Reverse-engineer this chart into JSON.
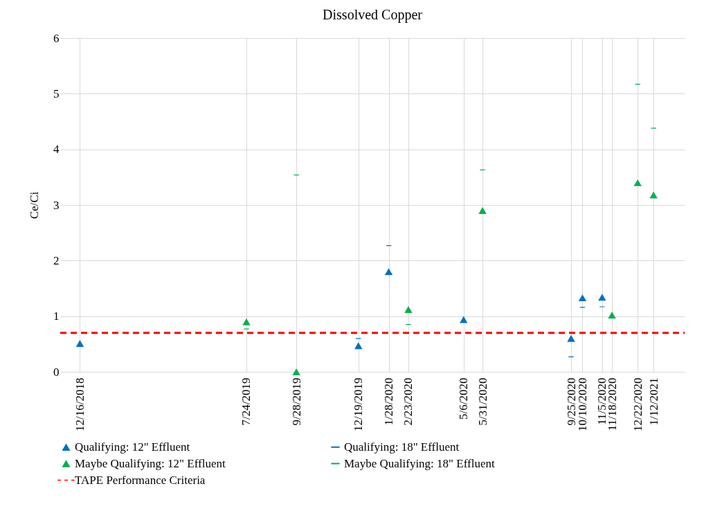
{
  "chart_data": {
    "type": "scatter",
    "title": "Dissolved Copper",
    "ylabel": "Ce/Ci",
    "xlim": [
      "2018-11-20",
      "2021-02-22"
    ],
    "ylim": [
      0,
      6
    ],
    "yticks": [
      0,
      1,
      2,
      3,
      4,
      5,
      6
    ],
    "xticks": [
      {
        "value": "2018-12-16",
        "label": "12/16/2018"
      },
      {
        "value": "2019-07-24",
        "label": "7/24/2019"
      },
      {
        "value": "2019-09-28",
        "label": "9/28/2019"
      },
      {
        "value": "2019-12-19",
        "label": "12/19/2019"
      },
      {
        "value": "2020-01-28",
        "label": "1/28/2020"
      },
      {
        "value": "2020-02-23",
        "label": "2/23/2020"
      },
      {
        "value": "2020-05-06",
        "label": "5/6/2020"
      },
      {
        "value": "2020-05-31",
        "label": "5/31/2020"
      },
      {
        "value": "2020-09-25",
        "label": "9/25/2020"
      },
      {
        "value": "2020-10-10",
        "label": "10/10/2020"
      },
      {
        "value": "2020-11-05",
        "label": "11/5/2020"
      },
      {
        "value": "2020-11-18",
        "label": "11/18/2020"
      },
      {
        "value": "2020-12-22",
        "label": "12/22/2020"
      },
      {
        "value": "2021-01-12",
        "label": "1/12/2021"
      }
    ],
    "grid": true,
    "legend": "bottom",
    "series": [
      {
        "name": "Qualifying: 12\" Effluent",
        "color": "#0070c0",
        "marker": "triangle",
        "x": [
          "2018-12-16",
          "2019-12-19",
          "2020-01-28",
          "2020-05-06",
          "2020-09-25",
          "2020-10-10",
          "2020-11-05"
        ],
        "values": [
          0.51,
          0.47,
          1.8,
          0.94,
          0.6,
          1.33,
          1.34
        ]
      },
      {
        "name": "Qualifying: 18\" Effluent",
        "color": "#0070c0",
        "x": [
          "2019-12-19",
          "2020-01-28",
          "2020-09-25",
          "2020-10-10",
          "2020-11-05"
        ],
        "values": [
          0.6,
          2.27,
          0.27,
          1.16,
          1.17
        ]
      },
      {
        "name": "Maybe Qualifying: 12\" Effluent",
        "color": "#00b050",
        "marker": "triangle",
        "x": [
          "2019-07-24",
          "2019-09-28",
          "2020-02-23",
          "2020-05-31",
          "2020-11-18",
          "2020-12-22",
          "2021-01-12"
        ],
        "values": [
          0.9,
          0,
          1.12,
          2.9,
          1.02,
          3.4,
          3.18
        ]
      },
      {
        "name": "Maybe Qualifying: 18\" Effluent",
        "color": "#00b050",
        "x": [
          "2019-07-24",
          "2019-09-28",
          "2020-02-23",
          "2020-05-31",
          "2020-12-22",
          "2021-01-12"
        ],
        "values": [
          0.77,
          3.54,
          0.85,
          3.63,
          5.17,
          4.38
        ]
      }
    ],
    "ref_lines": [
      {
        "axis": "y",
        "value": 0.7,
        "label": "TAPE Performance Criteria",
        "color": "#ff0000",
        "line_style": "dashed"
      }
    ]
  }
}
